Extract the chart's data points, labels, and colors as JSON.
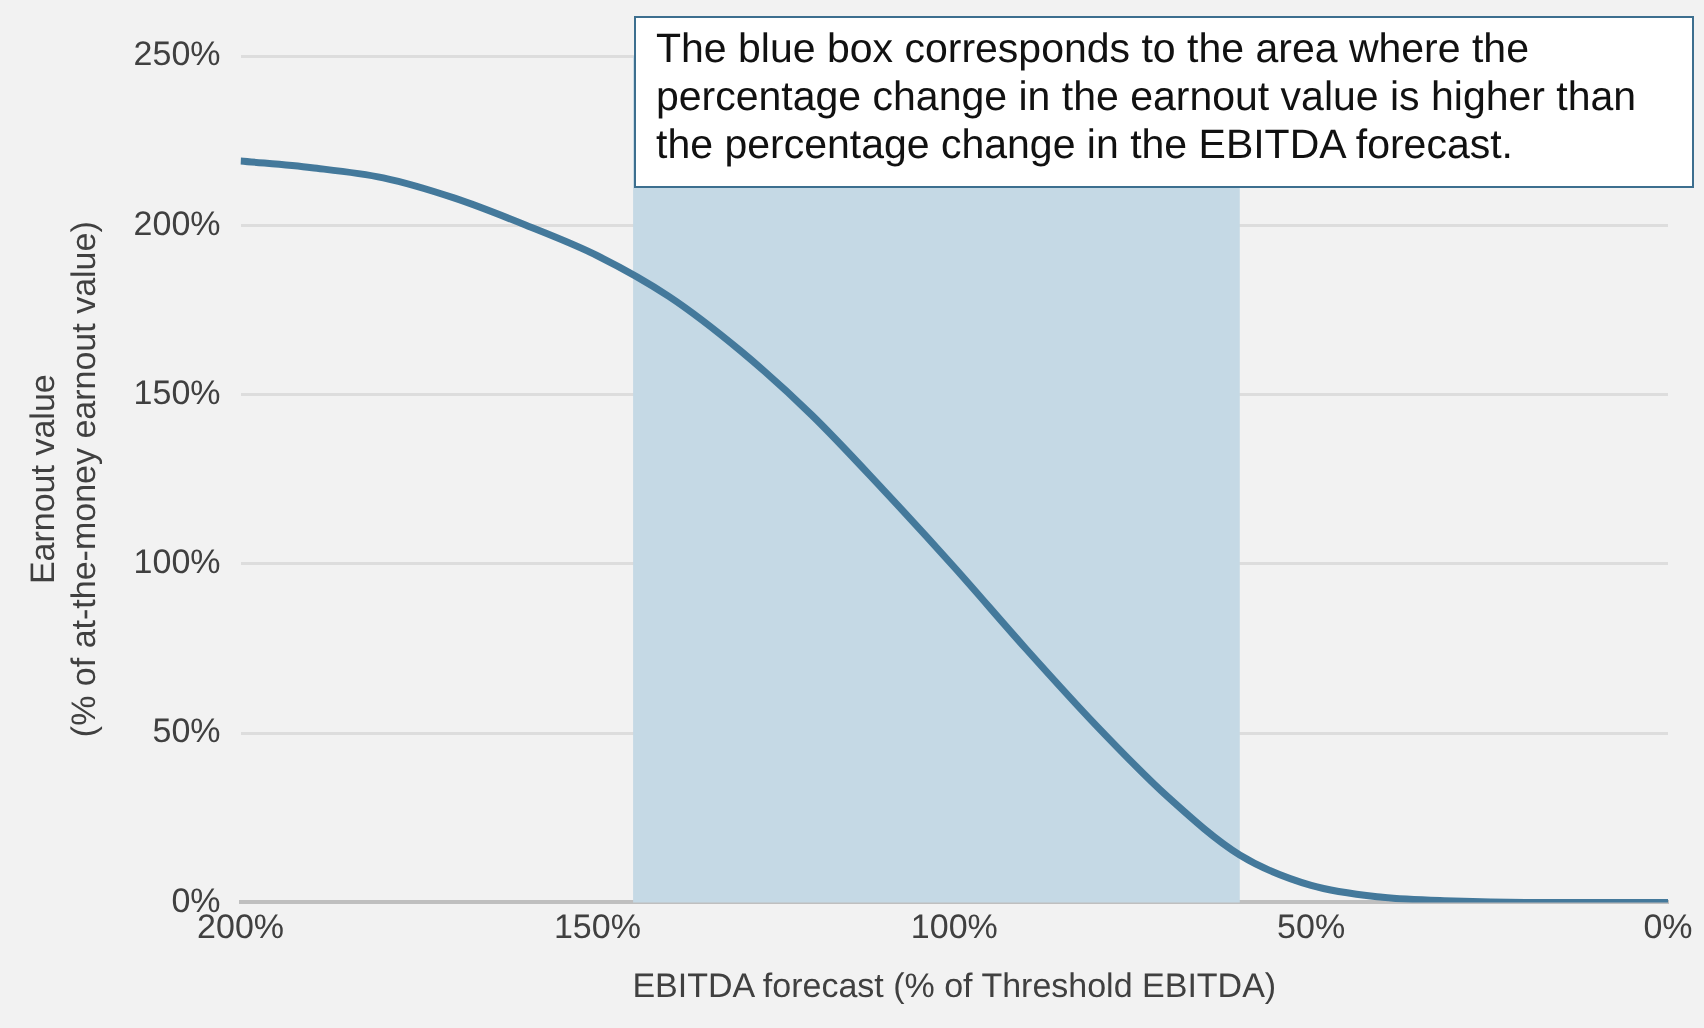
{
  "chart_data": {
    "type": "line",
    "xlabel": "EBITDA forecast (% of Threshold EBITDA)",
    "ylabel": "Earnout value\n(% of at-the-money earnout value)",
    "x": [
      200,
      190,
      180,
      170,
      160,
      150,
      140,
      130,
      120,
      110,
      100,
      90,
      80,
      70,
      60,
      50,
      40,
      30,
      20,
      10,
      0
    ],
    "series": [
      {
        "color": "#44799b",
        "values": [
          219,
          217,
          214,
          208,
          200,
          191,
          179,
          163,
          144,
          122,
          99,
          75,
          52,
          31,
          14,
          5,
          1.5,
          0.4,
          0,
          0,
          0
        ]
      }
    ],
    "xlim": [
      200,
      0
    ],
    "xticks": [
      {
        "value": 200,
        "label": "200%"
      },
      {
        "value": 150,
        "label": "150%"
      },
      {
        "value": 100,
        "label": "100%"
      },
      {
        "value": 50,
        "label": "50%"
      },
      {
        "value": 0,
        "label": "0%"
      }
    ],
    "ylim": [
      0,
      250
    ],
    "yticks": [
      {
        "value": 0,
        "label": "0%"
      },
      {
        "value": 50,
        "label": "50%"
      },
      {
        "value": 100,
        "label": "100%"
      },
      {
        "value": 150,
        "label": "150%"
      },
      {
        "value": 200,
        "label": "200%"
      },
      {
        "value": 250,
        "label": "250%"
      }
    ],
    "bands": [
      {
        "axis": "x",
        "from": 145,
        "to": 60,
        "color": "#c5d9e5"
      }
    ],
    "annotations": [
      "The blue box corresponds to the area where the percentage change in the earnout value is higher than the percentage change in the EBITDA forecast."
    ],
    "grid": "y",
    "legend": false,
    "marker": "none",
    "line_style": "solid"
  }
}
